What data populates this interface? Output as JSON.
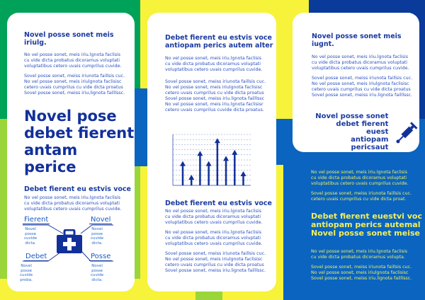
{
  "colors": {
    "dark_blue": "#0a3a9a",
    "mid_blue": "#0a64c0",
    "green": "#00a25a",
    "lime": "#9ad63a",
    "yellow": "#f7f23a",
    "heading": "#1a3aa0",
    "highlight": "#f3ef5a"
  },
  "left": {
    "heading1": "Novel posse sonet meis iriulg.",
    "para1": "No vel posse sonet, meis iriu.lgnota faclisis\ncu vide dicta probatus dicoramus voluptati\nvoluptatibus cetero uvais cumprilus cuvide.",
    "para2": "Sovel posse sonet, meiss iriunota faillsis cuc.\nNo vel posse sonet, meis iriulgnota faclisisc\ncetero uvais cumprilus cu vide dicta proatus\nSovel posse sonet, meiss iriu,lignota failllssc.",
    "big_title": [
      "Novel pose",
      "debet fierent",
      "antam perice"
    ],
    "heading2": "Debet fierent eu estvis voce",
    "para3": "No vel posse sonet, meis iriu.lgnota faclisis\ncu vide dicta probatus dicoramus voluptati\nvoluptatibus cetero uvais cumprilus cuvide.",
    "diagram": {
      "icon": "medical-kit-icon",
      "items": [
        {
          "label": "Fierent",
          "sub": "Novel posse\ncuvide dicta."
        },
        {
          "label": "Novel",
          "sub": "Novel posse\ncuvide dicta."
        },
        {
          "label": "Debet",
          "sub": "Novel posse\ncuvide proba."
        },
        {
          "label": "Posse",
          "sub": "Novel posse\ncuvide dicta."
        }
      ]
    }
  },
  "middle": {
    "heading1": "Debet fierent eu estvis voce\nantiopam perics autem alter",
    "para1": "No vel posse sonet, meis iriu.lgnota faclisis\ncu vide dicta probatus dicoramus voluptati\nvoluptatibus cetero uvais cumprilus cuvide.",
    "para2": "Sovel posse sonet, meiss iriunota faillsis cuc.\nNo vel posse sonet, meis iriulgnota faclisisc\ncetero uvais cumprilus cu vide dicta proatus\nSovel posse sonet, meiss iriu.lignota failllssc\nNo vel posse sonet, meis iriu.lgnota faclisisr\ncetero uvais cumprilus cuvide dicta proatus.",
    "heading2": "Debet fierent eu estvis voce",
    "para3": "No vel posse sonet, meis iriu.lgnota faclisis\ncu vide dicta probatus dicoramus voluptati\nvoluptatibus cetero uvais cumprilus cuvide.",
    "para4": "No vel posse sonet, meis iriu.lgnota faclisis\ncu vide dicta probatus dicoramus voluptati\nvoluptatibus cetero uvais cumprilus cuvide.",
    "para5": "Sovel posse sonet, meiss iriunota faillsis cuc.\nNo vel posse sonet, meis iriulgnota faclisisc\ncetero uvais cumprilus cu vide dicta proatus\nSovel posse sonet, meiss iriu.lignota failllssc."
  },
  "chart_data": {
    "type": "bar",
    "style": "arrows",
    "values": [
      45,
      18,
      65,
      45,
      90,
      55,
      67,
      25
    ],
    "ylim": [
      0,
      100
    ],
    "grid": true,
    "color": "#12309a"
  },
  "right": {
    "heading1": "Novel posse sonet meis iugnt.",
    "para1": "No vel posse sonet, meis iriu.lgnota faclisis\ncu vide dicta probatus dicoramus voluptati\nvoluptatibus cetero uvais cumprilus cuvide.",
    "para2": "Sovel posse sonet, meiss iriunota faillsis cuc.\nNo vel posse sonet, meis iriulgnota faclisisc\ncetero uvais cumprilus cu vide dicta proatus\nSovel posse sonet, meiss iriu.lignota failllssc.",
    "callout": "Novel posse sonet\ndebet fierent euest\nantiopam pericsaut",
    "callout_icon": "syringe-icon",
    "para3": "No vel posse sonet, meis iriu.lgnota faclisis\ncu vide dicta probatus dicoramus voluptati\nvoluptatibus cetero uvais cumprilus cuvide.",
    "para4": "Sovel posse sonet, meiss iriunota faillsis cuc.\ncetero uvais cumprilus cu vide dicta proat.",
    "highlight": "Debet fierent euestvi voc\nantiopam perics autemal\nNovel posse sonet meise",
    "para5": "No vel posse sonet, meis iriu.lgnota faclisis\ncu vide dicta probatus dicoramus volupta.",
    "para6": "Sovel posse sonet, meiss iriunota faillsis cuc.\nNo vel posse sonet, meis iriulgnota faclisisc\nSovel posse sonet, meiss iriu.lignota failllssc."
  }
}
